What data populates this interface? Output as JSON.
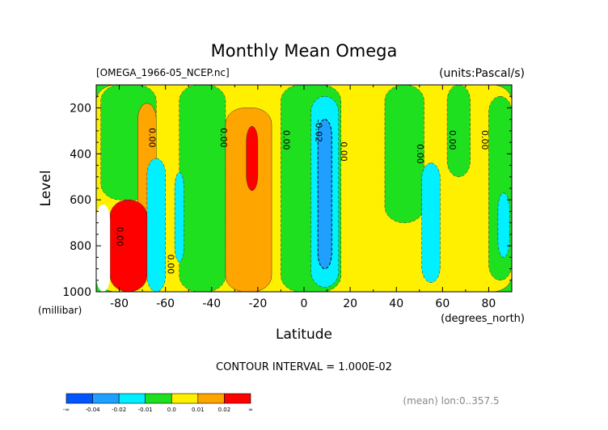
{
  "title": "Monthly Mean Omega",
  "file_label": "[OMEGA_1966-05_NCEP.nc]",
  "units_label": "(units:Pascal/s)",
  "contour_interval_label": "CONTOUR INTERVAL = 1.000E-02",
  "mean_label": "(mean) lon:0..357.5",
  "chart_data": {
    "type": "heatmap",
    "title": "Monthly Mean Omega",
    "xlabel": "Latitude",
    "x_units": "(degrees_north)",
    "ylabel": "Level",
    "y_units": "(millibar)",
    "xlim": [
      -90,
      90
    ],
    "ylim": [
      1000,
      100
    ],
    "y_inverted": true,
    "x_ticks": [
      -80,
      -60,
      -40,
      -20,
      0,
      20,
      40,
      60,
      80
    ],
    "y_ticks": [
      200,
      400,
      600,
      800,
      1000
    ],
    "contour_interval": 0.01,
    "colorbar": {
      "tick_labels": [
        "-∞",
        "-0.04",
        "-0.02",
        "-0.01",
        "0.0",
        "0.01",
        "0.02",
        "∞"
      ],
      "colors": [
        "#0055ff",
        "#1fa0ff",
        "#00f0ff",
        "#1ee01e",
        "#fff000",
        "#ffa500",
        "#ff0000"
      ]
    },
    "contour_labels": [
      {
        "text": "0.00",
        "lat": -67,
        "level": 330
      },
      {
        "text": "0.00",
        "lat": -36,
        "level": 330
      },
      {
        "text": "0.00",
        "lat": -9,
        "level": 340
      },
      {
        "text": "-0.02",
        "lat": 5,
        "level": 300
      },
      {
        "text": "0.00",
        "lat": 16,
        "level": 390
      },
      {
        "text": "0.00",
        "lat": 49,
        "level": 400
      },
      {
        "text": "0.00",
        "lat": 63,
        "level": 340
      },
      {
        "text": "0.00",
        "lat": 77,
        "level": 340
      },
      {
        "text": "0.00",
        "lat": -59,
        "level": 880
      },
      {
        "text": "0.00",
        "lat": -81,
        "level": 760
      }
    ],
    "regions": [
      {
        "category": "0.0 to 0.01",
        "lat_range": [
          -90,
          90
        ],
        "level_range": [
          100,
          1000
        ]
      },
      {
        "category": "-0.01 to 0.0",
        "lat_range": [
          -88,
          -64
        ],
        "level_range": [
          100,
          600
        ]
      },
      {
        "category": "-0.01 to 0.0",
        "lat_range": [
          -54,
          -34
        ],
        "level_range": [
          100,
          1000
        ]
      },
      {
        "category": "-0.01 to 0.0",
        "lat_range": [
          -10,
          16
        ],
        "level_range": [
          100,
          1000
        ]
      },
      {
        "category": "-0.01 to 0.0",
        "lat_range": [
          35,
          52
        ],
        "level_range": [
          100,
          700
        ]
      },
      {
        "category": "-0.01 to 0.0",
        "lat_range": [
          62,
          72
        ],
        "level_range": [
          100,
          500
        ]
      },
      {
        "category": "-0.01 to 0.0",
        "lat_range": [
          80,
          90
        ],
        "level_range": [
          150,
          950
        ]
      },
      {
        "category": "0.01 to 0.02",
        "lat_range": [
          -72,
          -64
        ],
        "level_range": [
          180,
          900
        ]
      },
      {
        "category": "0.01 to 0.02",
        "lat_range": [
          -34,
          -14
        ],
        "level_range": [
          200,
          1000
        ]
      },
      {
        "category": "0.02 and above",
        "lat_range": [
          -25,
          -20
        ],
        "level_range": [
          280,
          560
        ]
      },
      {
        "category": "-0.02 to -0.01",
        "lat_range": [
          3,
          15
        ],
        "level_range": [
          150,
          980
        ]
      },
      {
        "category": "-0.04 to -0.02",
        "lat_range": [
          6,
          12
        ],
        "level_range": [
          250,
          900
        ]
      },
      {
        "category": "-0.02 to -0.01",
        "lat_range": [
          -68,
          -60
        ],
        "level_range": [
          420,
          1000
        ]
      },
      {
        "category": "-0.02 to -0.01",
        "lat_range": [
          -56,
          -52
        ],
        "level_range": [
          480,
          870
        ]
      },
      {
        "category": "-0.02 to -0.01",
        "lat_range": [
          51,
          59
        ],
        "level_range": [
          440,
          960
        ]
      },
      {
        "category": "-0.02 to -0.01",
        "lat_range": [
          84,
          89
        ],
        "level_range": [
          570,
          850
        ]
      },
      {
        "category": "0.02 and above",
        "lat_range": [
          -84,
          -68
        ],
        "level_range": [
          600,
          1000
        ]
      },
      {
        "category": "missing",
        "lat_range": [
          -90,
          -84
        ],
        "level_range": [
          620,
          1000
        ]
      }
    ]
  }
}
